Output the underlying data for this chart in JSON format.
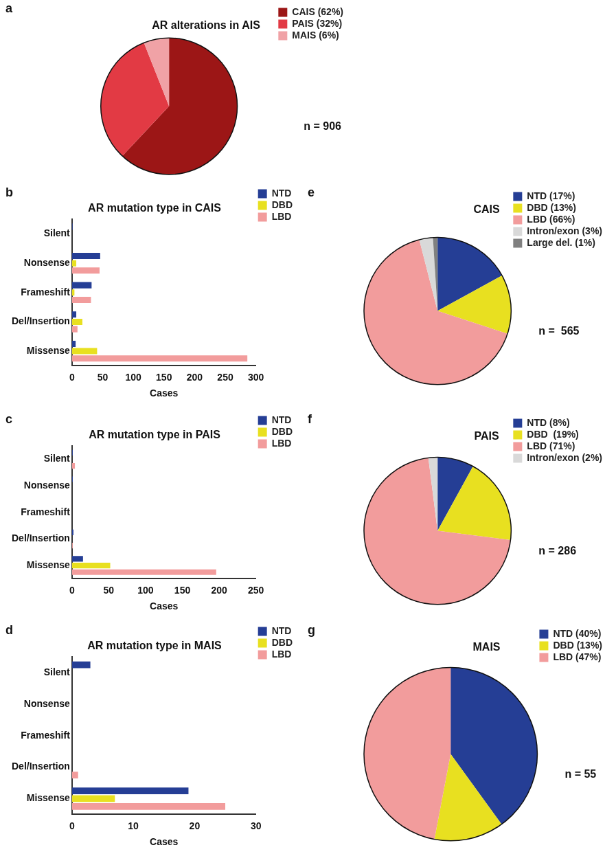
{
  "chart_data": [
    {
      "type": "pie",
      "title": "AR alterations in AIS",
      "categories": [
        "CAIS (62%)",
        "PAIS (32%)",
        "MAIS (6%)"
      ],
      "values": [
        62,
        32,
        6
      ],
      "colors": [
        "#9c1616",
        "#e23a44",
        "#f0a2a6"
      ],
      "legend": "right",
      "annotations": [
        "a",
        "n = 906"
      ]
    },
    {
      "type": "bar",
      "orientation": "horizontal",
      "title": "AR mutation type in CAIS",
      "xlabel": "Cases",
      "categories": [
        "Silent",
        "Nonsense",
        "Frameshift",
        "Del/Insertion",
        "Missense"
      ],
      "series": [
        {
          "name": "NTD",
          "color": "#253e95",
          "values": [
            1,
            46,
            32,
            7,
            6
          ]
        },
        {
          "name": "DBD",
          "color": "#e8e020",
          "values": [
            0,
            7,
            4,
            17,
            41
          ]
        },
        {
          "name": "LBD",
          "color": "#f29c9c",
          "values": [
            0,
            45,
            31,
            9,
            286
          ]
        }
      ],
      "xlim": [
        0,
        300
      ],
      "xticks": [
        0,
        50,
        100,
        150,
        200,
        250,
        300
      ],
      "grid": false,
      "legend": "right",
      "annotations": [
        "b"
      ]
    },
    {
      "type": "pie",
      "title": "CAIS",
      "categories": [
        "NTD (17%)",
        "DBD (13%)",
        "LBD (66%)",
        "Intron/exon (3%)",
        "Large del. (1%)"
      ],
      "values": [
        17,
        13,
        66,
        3,
        1
      ],
      "colors": [
        "#253e95",
        "#e8e020",
        "#f29c9c",
        "#d9d9d9",
        "#808080"
      ],
      "legend": "right",
      "annotations": [
        "e",
        "n =  565"
      ]
    },
    {
      "type": "bar",
      "orientation": "horizontal",
      "title": "AR mutation type in PAIS",
      "xlabel": "Cases",
      "categories": [
        "Silent",
        "Nonsense",
        "Frameshift",
        "Del/Insertion",
        "Missense"
      ],
      "series": [
        {
          "name": "NTD",
          "color": "#253e95",
          "values": [
            1,
            1,
            0,
            2,
            15
          ]
        },
        {
          "name": "DBD",
          "color": "#e8e020",
          "values": [
            0,
            0,
            0,
            0,
            52
          ]
        },
        {
          "name": "LBD",
          "color": "#f29c9c",
          "values": [
            4,
            0,
            0,
            1,
            196
          ]
        }
      ],
      "xlim": [
        0,
        250
      ],
      "xticks": [
        0,
        50,
        100,
        150,
        200,
        250
      ],
      "grid": false,
      "legend": "right",
      "annotations": [
        "c"
      ]
    },
    {
      "type": "pie",
      "title": "PAIS",
      "categories": [
        "NTD (8%)",
        "DBD  (19%)",
        "LBD (71%)",
        "Intron/exon (2%)"
      ],
      "values": [
        8,
        19,
        71,
        2
      ],
      "colors": [
        "#253e95",
        "#e8e020",
        "#f29c9c",
        "#d9d9d9"
      ],
      "legend": "right",
      "annotations": [
        "f",
        "n = 286"
      ]
    },
    {
      "type": "bar",
      "orientation": "horizontal",
      "title": "AR mutation type in MAIS",
      "xlabel": "Cases",
      "categories": [
        "Silent",
        "Nonsense",
        "Frameshift",
        "Del/Insertion",
        "Missense"
      ],
      "series": [
        {
          "name": "NTD",
          "color": "#253e95",
          "values": [
            3,
            0,
            0,
            0,
            19
          ]
        },
        {
          "name": "DBD",
          "color": "#e8e020",
          "values": [
            0,
            0,
            0,
            0,
            7
          ]
        },
        {
          "name": "LBD",
          "color": "#f29c9c",
          "values": [
            0,
            0,
            0,
            1,
            25
          ]
        }
      ],
      "xlim": [
        0,
        30
      ],
      "xticks": [
        0,
        10,
        20,
        30
      ],
      "grid": false,
      "legend": "right",
      "annotations": [
        "d"
      ]
    },
    {
      "type": "pie",
      "title": "MAIS",
      "categories": [
        "NTD (40%)",
        "DBD (13%)",
        "LBD (47%)"
      ],
      "values": [
        40,
        13,
        47
      ],
      "colors": [
        "#253e95",
        "#e8e020",
        "#f29c9c"
      ],
      "legend": "right",
      "annotations": [
        "g",
        "n = 55"
      ]
    }
  ]
}
